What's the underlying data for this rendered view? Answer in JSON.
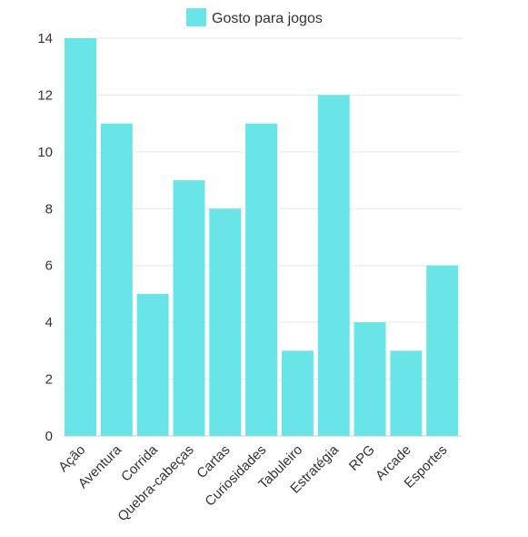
{
  "chart_data": {
    "type": "bar",
    "title": "",
    "xlabel": "",
    "ylabel": "",
    "categories": [
      "Ação",
      "Aventura",
      "Corrida",
      "Quebra-cabeças",
      "Cartas",
      "Curiosidades",
      "Tabuleiro",
      "Estratégia",
      "RPG",
      "Arcade",
      "Esportes"
    ],
    "series": [
      {
        "name": "Gosto para jogos",
        "values": [
          14,
          11,
          5,
          9,
          8,
          11,
          3,
          12,
          4,
          3,
          6
        ],
        "color": "#69E5E8"
      }
    ],
    "ylim": [
      0,
      14
    ],
    "yticks": [
      0,
      2,
      4,
      6,
      8,
      10,
      12,
      14
    ],
    "grid": true,
    "legend": "top-center"
  }
}
